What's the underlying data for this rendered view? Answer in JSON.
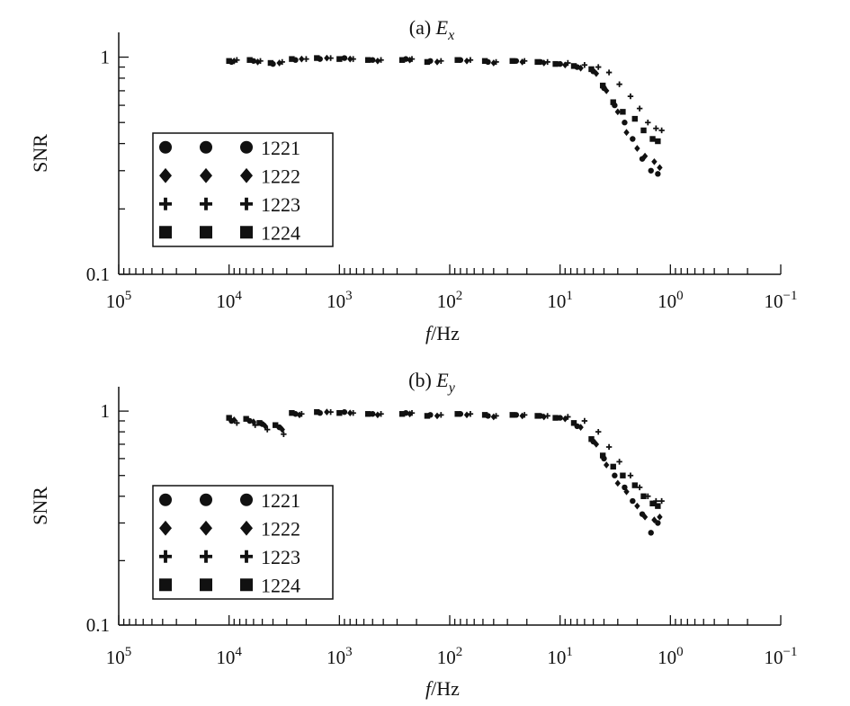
{
  "chart_data": [
    {
      "type": "scatter",
      "title_prefix": "(a) ",
      "title_main": "E",
      "title_sub": "x",
      "xlabel_main": "f",
      "xlabel_rest": "/Hz",
      "ylabel": "SNR",
      "xscale": "log",
      "xreversed": true,
      "xlim": [
        100000,
        0.1
      ],
      "yscale": "log",
      "ylim": [
        0.1,
        1.3
      ],
      "xticks": [
        {
          "m": "10",
          "e": "5"
        },
        {
          "m": "10",
          "e": "4"
        },
        {
          "m": "10",
          "e": "3"
        },
        {
          "m": "10",
          "e": "2"
        },
        {
          "m": "10",
          "e": "1"
        },
        {
          "m": "10",
          "e": "0"
        },
        {
          "m": "10",
          "e": "−1"
        }
      ],
      "yticks": [
        "1",
        "0.1"
      ],
      "legend_position": "left",
      "series": [
        {
          "name": "1221",
          "marker": "circle",
          "x": [
            9500,
            6000,
            4000,
            2500,
            1500,
            900,
            500,
            250,
            150,
            80,
            45,
            25,
            15,
            10,
            7,
            5,
            4,
            3.2,
            2.6,
            2.2,
            1.8,
            1.5,
            1.3
          ],
          "y": [
            0.95,
            0.96,
            0.93,
            0.97,
            0.98,
            0.99,
            0.97,
            0.98,
            0.96,
            0.97,
            0.95,
            0.96,
            0.95,
            0.93,
            0.9,
            0.86,
            0.72,
            0.6,
            0.5,
            0.42,
            0.34,
            0.3,
            0.29
          ]
        },
        {
          "name": "1222",
          "marker": "diamond",
          "x": [
            9000,
            5500,
            3500,
            2200,
            1300,
            800,
            450,
            230,
            130,
            70,
            40,
            22,
            14,
            9,
            6.5,
            4.7,
            3.8,
            3,
            2.5,
            2,
            1.7,
            1.4,
            1.25
          ],
          "y": [
            0.96,
            0.95,
            0.94,
            0.98,
            0.99,
            0.98,
            0.96,
            0.97,
            0.95,
            0.96,
            0.94,
            0.95,
            0.94,
            0.92,
            0.89,
            0.84,
            0.7,
            0.56,
            0.45,
            0.38,
            0.35,
            0.33,
            0.31
          ]
        },
        {
          "name": "1223",
          "marker": "plus",
          "x": [
            8500,
            5200,
            3300,
            2000,
            1200,
            750,
            420,
            220,
            120,
            65,
            38,
            21,
            13,
            8.5,
            6,
            4.5,
            3.6,
            2.9,
            2.3,
            1.9,
            1.6,
            1.35,
            1.2
          ],
          "y": [
            0.97,
            0.96,
            0.95,
            0.98,
            0.99,
            0.98,
            0.97,
            0.98,
            0.96,
            0.97,
            0.95,
            0.96,
            0.95,
            0.94,
            0.92,
            0.9,
            0.85,
            0.75,
            0.66,
            0.58,
            0.5,
            0.47,
            0.46
          ]
        },
        {
          "name": "1224",
          "marker": "square",
          "x": [
            10000,
            6500,
            4200,
            2700,
            1600,
            1000,
            550,
            270,
            160,
            85,
            48,
            27,
            16,
            11,
            7.5,
            5.2,
            4.1,
            3.3,
            2.7,
            2.1,
            1.75,
            1.45,
            1.3
          ],
          "y": [
            0.96,
            0.97,
            0.94,
            0.98,
            0.99,
            0.98,
            0.97,
            0.97,
            0.95,
            0.97,
            0.96,
            0.96,
            0.95,
            0.93,
            0.91,
            0.88,
            0.74,
            0.62,
            0.56,
            0.52,
            0.46,
            0.42,
            0.41
          ]
        }
      ]
    },
    {
      "type": "scatter",
      "title_prefix": "(b) ",
      "title_main": "E",
      "title_sub": "y",
      "xlabel_main": "f",
      "xlabel_rest": "/Hz",
      "ylabel": "SNR",
      "xscale": "log",
      "xreversed": true,
      "xlim": [
        100000,
        0.1
      ],
      "yscale": "log",
      "ylim": [
        0.1,
        1.3
      ],
      "xticks": [
        {
          "m": "10",
          "e": "5"
        },
        {
          "m": "10",
          "e": "4"
        },
        {
          "m": "10",
          "e": "3"
        },
        {
          "m": "10",
          "e": "2"
        },
        {
          "m": "10",
          "e": "1"
        },
        {
          "m": "10",
          "e": "0"
        },
        {
          "m": "10",
          "e": "−1"
        }
      ],
      "yticks": [
        "1",
        "0.1"
      ],
      "legend_position": "left",
      "series": [
        {
          "name": "1221",
          "marker": "circle",
          "x": [
            9500,
            6500,
            5000,
            3500,
            2500,
            1500,
            900,
            500,
            250,
            150,
            80,
            45,
            25,
            15,
            10,
            7,
            5,
            4,
            3.2,
            2.6,
            2.2,
            1.8,
            1.5,
            1.3
          ],
          "y": [
            0.9,
            0.9,
            0.87,
            0.84,
            0.97,
            0.98,
            0.99,
            0.97,
            0.98,
            0.96,
            0.97,
            0.95,
            0.96,
            0.95,
            0.93,
            0.85,
            0.72,
            0.6,
            0.5,
            0.44,
            0.38,
            0.33,
            0.27,
            0.3
          ]
        },
        {
          "name": "1222",
          "marker": "diamond",
          "x": [
            9000,
            6000,
            4700,
            3300,
            2300,
            1300,
            800,
            450,
            230,
            130,
            70,
            40,
            22,
            14,
            9,
            6.5,
            4.7,
            3.8,
            3,
            2.5,
            2,
            1.7,
            1.4,
            1.25
          ],
          "y": [
            0.91,
            0.89,
            0.85,
            0.82,
            0.96,
            0.99,
            0.98,
            0.96,
            0.97,
            0.95,
            0.96,
            0.94,
            0.95,
            0.94,
            0.92,
            0.84,
            0.7,
            0.56,
            0.46,
            0.42,
            0.36,
            0.32,
            0.31,
            0.32
          ]
        },
        {
          "name": "1223",
          "marker": "plus",
          "x": [
            8500,
            5800,
            4500,
            3200,
            2200,
            1200,
            750,
            420,
            220,
            120,
            65,
            38,
            21,
            13,
            8.5,
            6,
            4.5,
            3.6,
            2.9,
            2.3,
            1.9,
            1.6,
            1.35,
            1.2
          ],
          "y": [
            0.88,
            0.86,
            0.82,
            0.78,
            0.97,
            0.99,
            0.98,
            0.97,
            0.98,
            0.96,
            0.97,
            0.95,
            0.96,
            0.95,
            0.94,
            0.9,
            0.8,
            0.68,
            0.58,
            0.5,
            0.44,
            0.4,
            0.38,
            0.38
          ]
        },
        {
          "name": "1224",
          "marker": "square",
          "x": [
            10000,
            7000,
            5300,
            3800,
            2700,
            1600,
            1000,
            550,
            270,
            160,
            85,
            48,
            27,
            16,
            11,
            7.5,
            5.2,
            4.1,
            3.3,
            2.7,
            2.1,
            1.75,
            1.45,
            1.3
          ],
          "y": [
            0.93,
            0.92,
            0.88,
            0.86,
            0.98,
            0.99,
            0.98,
            0.97,
            0.97,
            0.95,
            0.97,
            0.96,
            0.96,
            0.95,
            0.93,
            0.88,
            0.74,
            0.62,
            0.55,
            0.5,
            0.45,
            0.4,
            0.37,
            0.36
          ]
        }
      ]
    }
  ]
}
